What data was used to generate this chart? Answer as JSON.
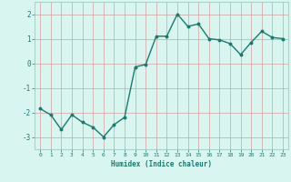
{
  "x": [
    0,
    1,
    2,
    3,
    4,
    5,
    6,
    7,
    8,
    9,
    10,
    11,
    12,
    13,
    14,
    15,
    16,
    17,
    18,
    19,
    20,
    21,
    22,
    23
  ],
  "y": [
    -1.85,
    -2.1,
    -2.7,
    -2.1,
    -2.4,
    -2.6,
    -3.0,
    -2.5,
    -2.2,
    -0.15,
    -0.05,
    1.1,
    1.1,
    2.0,
    1.5,
    1.6,
    1.0,
    0.95,
    0.8,
    0.35,
    0.85,
    1.3,
    1.05,
    1.0
  ],
  "xlim": [
    -0.5,
    23.5
  ],
  "ylim": [
    -3.5,
    2.5
  ],
  "yticks": [
    -3,
    -2,
    -1,
    0,
    1,
    2
  ],
  "xticks": [
    0,
    1,
    2,
    3,
    4,
    5,
    6,
    7,
    8,
    9,
    10,
    11,
    12,
    13,
    14,
    15,
    16,
    17,
    18,
    19,
    20,
    21,
    22,
    23
  ],
  "xlabel": "Humidex (Indice chaleur)",
  "line_color": "#1a7a6e",
  "marker": "o",
  "marker_size": 1.8,
  "bg_color": "#d8f5f0",
  "grid_color": "#c0ddd8",
  "tick_color": "#1a7a6e",
  "label_color": "#1a7a6e",
  "line_width": 1.0,
  "spine_color": "#a0c8c0"
}
